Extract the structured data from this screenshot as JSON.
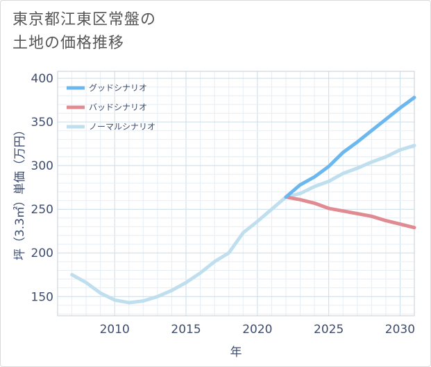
{
  "title": {
    "line1": "東京都江東区常盤の",
    "line2": "土地の価格推移"
  },
  "chart_data": {
    "type": "line",
    "title": "東京都江東区常盤の土地の価格推移",
    "xlabel": "年",
    "ylabel": "坪（3.3㎡）単価（万円）",
    "xlim": [
      2006,
      2031
    ],
    "ylim": [
      128,
      408
    ],
    "xticks": [
      2010,
      2015,
      2020,
      2025,
      2030
    ],
    "yticks": [
      150,
      200,
      250,
      300,
      350,
      400
    ],
    "grid": true,
    "legend_position": "top-left",
    "series": [
      {
        "name": "グッドシナリオ",
        "color": "#6cb8ee",
        "x": [
          2022,
          2023,
          2024,
          2025,
          2026,
          2027,
          2028,
          2029,
          2030,
          2031
        ],
        "values": [
          264,
          278,
          287,
          299,
          315,
          327,
          340,
          353,
          366,
          378
        ]
      },
      {
        "name": "バッドシナリオ",
        "color": "#e08a91",
        "x": [
          2022,
          2023,
          2024,
          2025,
          2026,
          2027,
          2028,
          2029,
          2030,
          2031
        ],
        "values": [
          264,
          261,
          257,
          251,
          248,
          245,
          242,
          237,
          233,
          229
        ]
      },
      {
        "name": "ノーマルシナリオ",
        "color": "#c0dfee",
        "x": [
          2007,
          2008,
          2009,
          2010,
          2011,
          2012,
          2013,
          2014,
          2015,
          2016,
          2017,
          2018,
          2019,
          2020,
          2021,
          2022,
          2023,
          2024,
          2025,
          2026,
          2027,
          2028,
          2029,
          2030,
          2031
        ],
        "values": [
          175,
          166,
          154,
          146,
          143,
          145,
          150,
          157,
          166,
          177,
          190,
          200,
          223,
          236,
          250,
          264,
          268,
          276,
          282,
          291,
          297,
          304,
          310,
          318,
          323
        ]
      }
    ]
  }
}
